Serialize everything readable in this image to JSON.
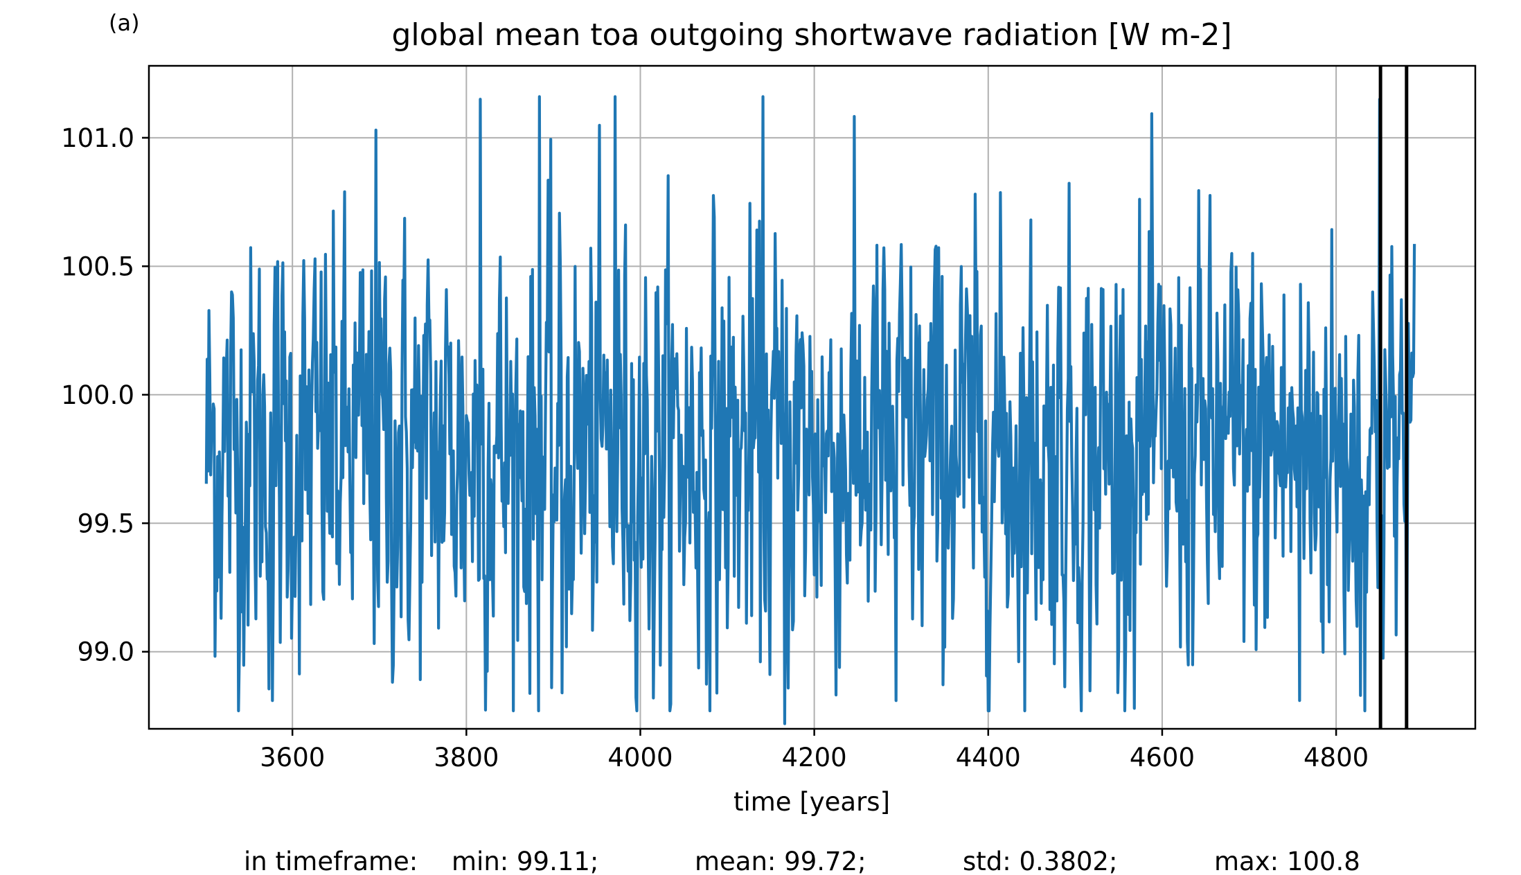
{
  "chart_data": {
    "type": "line",
    "panel_label": "(a)",
    "title": "global mean toa outgoing shortwave radiation [W m-2]",
    "xlabel": "time [years]",
    "ylabel": "",
    "xlim": [
      3435,
      4960
    ],
    "ylim": [
      98.7,
      101.28
    ],
    "xticks": [
      3600,
      3800,
      4000,
      4200,
      4400,
      4600,
      4800
    ],
    "yticks": [
      99.0,
      99.5,
      100.0,
      100.5,
      101.0
    ],
    "ytick_labels": [
      "99.0",
      "99.5",
      "100.0",
      "100.5",
      "101.0"
    ],
    "grid": true,
    "series": [
      {
        "color": "#1f77b4",
        "x_start": 3501,
        "x_end": 4890,
        "x_step": 1,
        "mean": 99.78,
        "std": 0.42,
        "min": 98.72,
        "max": 101.16,
        "notable_points": [
          {
            "x": 3577,
            "y": 98.81
          },
          {
            "x": 3696,
            "y": 101.03
          },
          {
            "x": 3816,
            "y": 101.15
          },
          {
            "x": 3884,
            "y": 101.16
          },
          {
            "x": 3898,
            "y": 98.86
          },
          {
            "x": 3910,
            "y": 98.84
          },
          {
            "x": 3971,
            "y": 101.16
          },
          {
            "x": 4015,
            "y": 98.82
          },
          {
            "x": 4141,
            "y": 101.16
          },
          {
            "x": 4166,
            "y": 98.72
          },
          {
            "x": 4294,
            "y": 98.81
          },
          {
            "x": 4758,
            "y": 98.81
          },
          {
            "x": 4828,
            "y": 98.83
          },
          {
            "x": 4850,
            "y": 101.15
          }
        ]
      }
    ],
    "vertical_lines": [
      {
        "x": 4851,
        "color": "#000000"
      },
      {
        "x": 4881,
        "color": "#000000"
      }
    ],
    "stats_line": {
      "label": "in timeframe:",
      "min": "min: 99.11;",
      "mean": "mean: 99.72;",
      "std": "std: 0.3802;",
      "max": "max: 100.8"
    }
  }
}
